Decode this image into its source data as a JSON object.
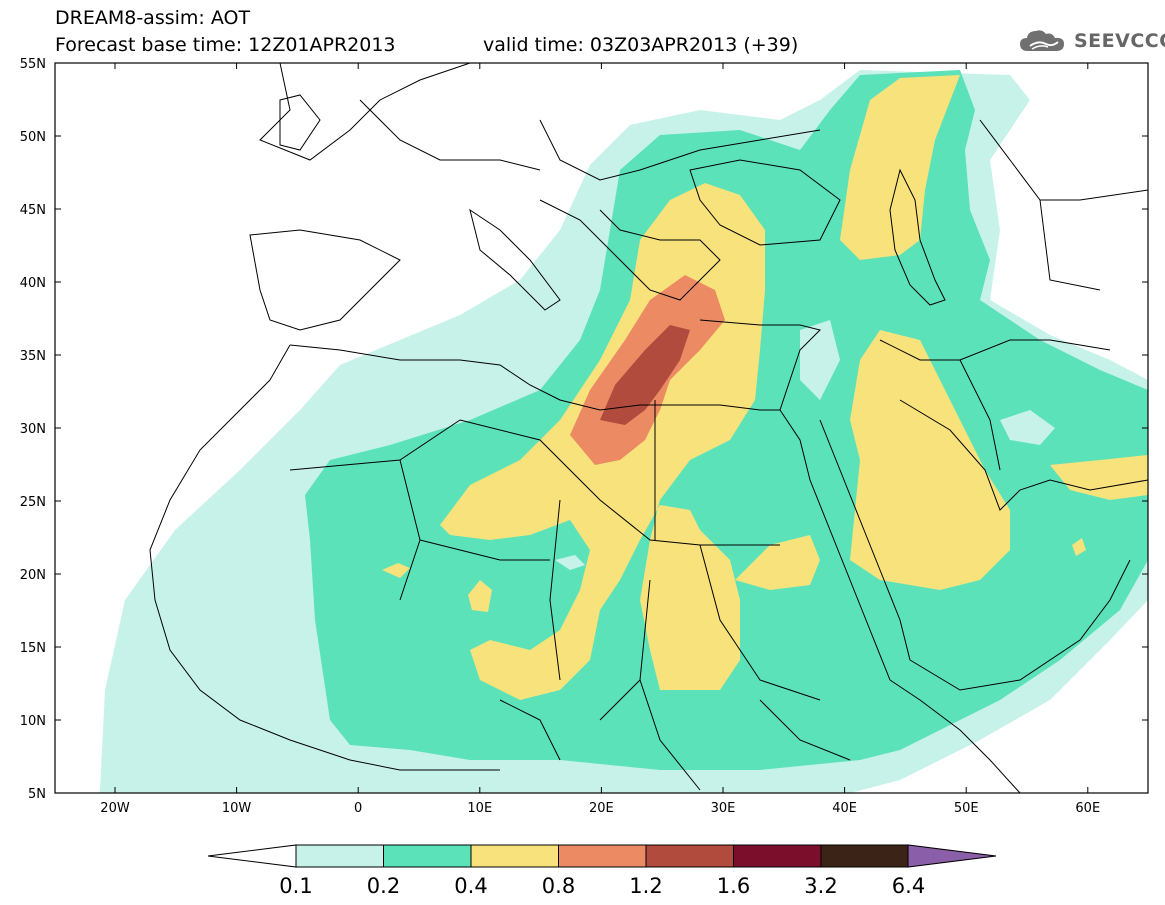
{
  "header": {
    "title": "DREAM8-assim: AOT",
    "base_time": "Forecast base time: 12Z01APR2013",
    "valid_time": "valid time: 03Z03APR2013 (+39)"
  },
  "logo": {
    "text": "SEEVCCC",
    "icon": "cloud-icon"
  },
  "map": {
    "lat_labels": [
      "55N",
      "50N",
      "45N",
      "40N",
      "35N",
      "30N",
      "25N",
      "20N",
      "15N",
      "10N",
      "5N"
    ],
    "lon_labels": [
      "20W",
      "10W",
      "0",
      "10E",
      "20E",
      "30E",
      "40E",
      "50E",
      "60E"
    ]
  },
  "colorbar": {
    "labels": [
      "0.1",
      "0.2",
      "0.4",
      "0.8",
      "1.2",
      "1.6",
      "3.2",
      "6.4"
    ],
    "colors": [
      "#c7f2ea",
      "#5ce2b9",
      "#f7e27c",
      "#ec8a63",
      "#b04b3d",
      "#7a0e2b",
      "#3b2417",
      "#8a5ea8"
    ]
  }
}
